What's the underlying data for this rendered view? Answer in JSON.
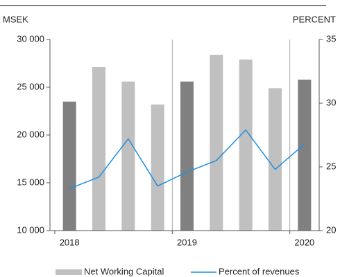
{
  "chart_data": {
    "type": "bar-line",
    "y_label": "MSEK",
    "y2_label": "PERCENT",
    "categories": [
      "2018",
      null,
      null,
      null,
      "2019",
      null,
      null,
      null,
      "2020"
    ],
    "series": [
      {
        "name": "Net Working Capital",
        "type": "bar",
        "color": "#c0c0c0",
        "colors": [
          "#808080",
          "#c0c0c0",
          "#c0c0c0",
          "#c0c0c0",
          "#808080",
          "#c0c0c0",
          "#c0c0c0",
          "#c0c0c0",
          "#808080"
        ],
        "values": [
          23500,
          27100,
          25600,
          23200,
          25600,
          28400,
          27900,
          24900,
          25800
        ]
      },
      {
        "name": "Percent of revenues",
        "type": "line",
        "color": "#1f8fe0",
        "axis": "y2",
        "values": [
          23.3,
          24.2,
          27.2,
          23.5,
          24.6,
          25.5,
          27.9,
          24.8,
          26.8
        ]
      }
    ],
    "ylim": [
      10000,
      30000
    ],
    "yticks": [
      {
        "value": 10000,
        "label": "10 000"
      },
      {
        "value": 15000,
        "label": "15 000"
      },
      {
        "value": 20000,
        "label": "20 000"
      },
      {
        "value": 25000,
        "label": "25 000"
      },
      {
        "value": 30000,
        "label": "30 000"
      }
    ],
    "y2lim": [
      20,
      35
    ],
    "y2ticks": [
      20,
      25,
      30,
      35
    ],
    "legend": "bottom"
  }
}
